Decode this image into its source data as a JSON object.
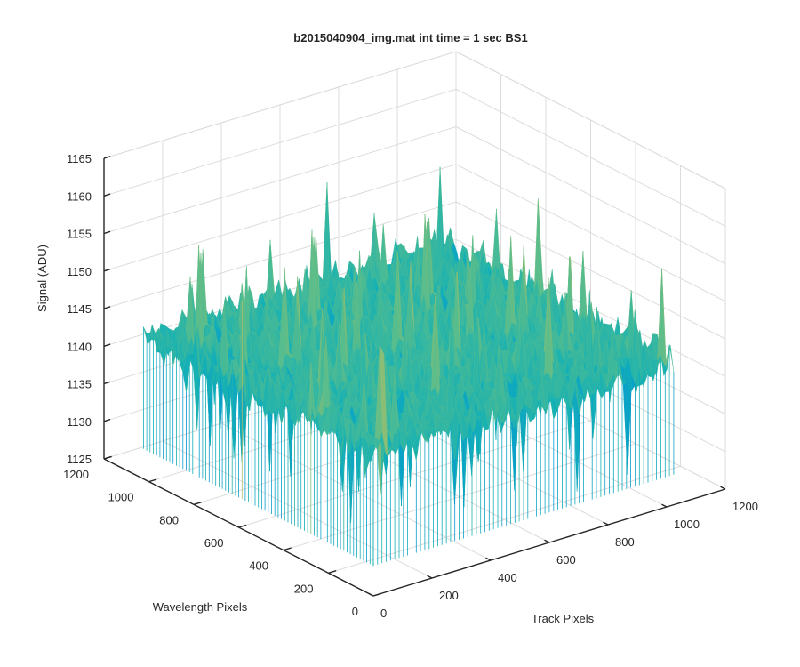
{
  "chart_data": {
    "type": "surface",
    "title": "b2015040904_img.mat int time = 1 sec   BS1",
    "xlabel": "Track Pixels",
    "ylabel": "Wavelength Pixels",
    "zlabel": "Signal (ADU)",
    "xlim": [
      0,
      1200
    ],
    "ylim": [
      0,
      1200
    ],
    "zlim": [
      1125,
      1165
    ],
    "x_ticks": [
      0,
      200,
      400,
      600,
      800,
      1000,
      1200
    ],
    "y_ticks": [
      0,
      200,
      400,
      600,
      800,
      1000,
      1200
    ],
    "z_ticks": [
      1125,
      1130,
      1135,
      1140,
      1145,
      1150,
      1155,
      1160,
      1165
    ],
    "x_data_range": [
      0,
      1024
    ],
    "y_data_range": [
      0,
      1024
    ],
    "signal_mean": 1144,
    "signal_range": [
      1127,
      1162
    ],
    "grid": true,
    "colormap": "parula"
  }
}
